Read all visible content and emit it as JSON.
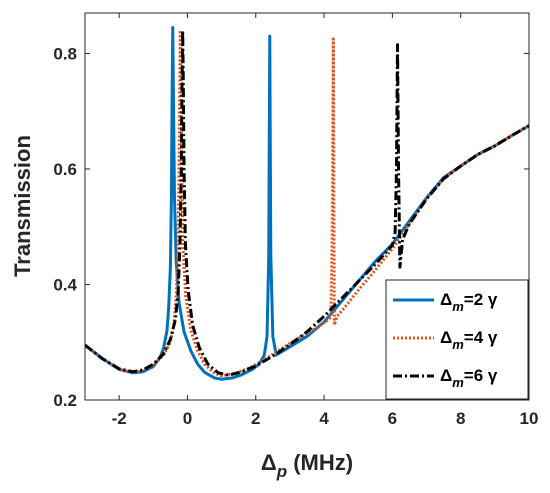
{
  "chart_data": {
    "type": "line",
    "xlabel": "Δp (MHz)",
    "xlabel_parts": {
      "symbol": "Δ",
      "sub": "p",
      "unit": " (MHz)"
    },
    "ylabel": "Transmission",
    "xlim": [
      -3,
      10
    ],
    "ylim": [
      0.2,
      0.87
    ],
    "xticks": [
      "-2",
      "0",
      "2",
      "4",
      "6",
      "8",
      "10"
    ],
    "xtick_values": [
      -2,
      0,
      2,
      4,
      6,
      8,
      10
    ],
    "yticks": [
      "0.2",
      "0.4",
      "0.6",
      "0.8"
    ],
    "ytick_values": [
      0.2,
      0.4,
      0.6,
      0.8
    ],
    "grid": false,
    "legend_position": "bottom-right",
    "series": [
      {
        "name": "Δm=2 γ",
        "legend_parts": {
          "sub": "m",
          "text": "=2 γ"
        },
        "color": "#0072BD",
        "style": "solid",
        "points": [
          [
            -3.0,
            0.295
          ],
          [
            -2.5,
            0.272
          ],
          [
            -2.0,
            0.253
          ],
          [
            -1.6,
            0.247
          ],
          [
            -1.3,
            0.249
          ],
          [
            -1.0,
            0.258
          ],
          [
            -0.8,
            0.274
          ],
          [
            -0.7,
            0.29
          ],
          [
            -0.6,
            0.32
          ],
          [
            -0.55,
            0.36
          ],
          [
            -0.5,
            0.43
          ],
          [
            -0.47,
            0.55
          ],
          [
            -0.45,
            0.72
          ],
          [
            -0.43,
            0.845
          ],
          [
            -0.41,
            0.72
          ],
          [
            -0.38,
            0.55
          ],
          [
            -0.33,
            0.44
          ],
          [
            -0.25,
            0.37
          ],
          [
            -0.1,
            0.318
          ],
          [
            0.1,
            0.285
          ],
          [
            0.3,
            0.262
          ],
          [
            0.5,
            0.248
          ],
          [
            0.8,
            0.238
          ],
          [
            1.0,
            0.236
          ],
          [
            1.3,
            0.238
          ],
          [
            1.6,
            0.244
          ],
          [
            1.9,
            0.253
          ],
          [
            2.1,
            0.262
          ],
          [
            2.25,
            0.278
          ],
          [
            2.33,
            0.31
          ],
          [
            2.38,
            0.45
          ],
          [
            2.41,
            0.83
          ],
          [
            2.44,
            0.45
          ],
          [
            2.5,
            0.31
          ],
          [
            2.6,
            0.278
          ],
          [
            3.0,
            0.292
          ],
          [
            3.5,
            0.31
          ],
          [
            4.0,
            0.335
          ],
          [
            4.5,
            0.37
          ],
          [
            5.0,
            0.405
          ],
          [
            5.5,
            0.44
          ],
          [
            6.0,
            0.47
          ],
          [
            6.5,
            0.51
          ],
          [
            7.0,
            0.55
          ],
          [
            7.5,
            0.585
          ],
          [
            8.0,
            0.605
          ],
          [
            8.5,
            0.625
          ],
          [
            9.0,
            0.64
          ],
          [
            9.5,
            0.658
          ],
          [
            10.0,
            0.675
          ]
        ]
      },
      {
        "name": "Δm=4 γ",
        "legend_parts": {
          "sub": "m",
          "text": "=4 γ"
        },
        "color": "#D95319",
        "style": "dotted",
        "points": [
          [
            -3.0,
            0.295
          ],
          [
            -2.5,
            0.272
          ],
          [
            -2.0,
            0.253
          ],
          [
            -1.6,
            0.248
          ],
          [
            -1.3,
            0.251
          ],
          [
            -1.0,
            0.26
          ],
          [
            -0.7,
            0.278
          ],
          [
            -0.5,
            0.3
          ],
          [
            -0.4,
            0.33
          ],
          [
            -0.33,
            0.38
          ],
          [
            -0.28,
            0.46
          ],
          [
            -0.25,
            0.58
          ],
          [
            -0.23,
            0.72
          ],
          [
            -0.21,
            0.84
          ],
          [
            -0.19,
            0.72
          ],
          [
            -0.17,
            0.58
          ],
          [
            -0.13,
            0.46
          ],
          [
            -0.05,
            0.38
          ],
          [
            0.1,
            0.32
          ],
          [
            0.3,
            0.285
          ],
          [
            0.5,
            0.262
          ],
          [
            0.8,
            0.246
          ],
          [
            1.0,
            0.242
          ],
          [
            1.4,
            0.246
          ],
          [
            1.8,
            0.255
          ],
          [
            2.2,
            0.268
          ],
          [
            2.6,
            0.283
          ],
          [
            3.0,
            0.298
          ],
          [
            3.4,
            0.312
          ],
          [
            3.7,
            0.322
          ],
          [
            3.9,
            0.33
          ],
          [
            4.05,
            0.336
          ],
          [
            4.15,
            0.34
          ],
          [
            4.2,
            0.345
          ],
          [
            4.24,
            0.5
          ],
          [
            4.26,
            0.7
          ],
          [
            4.27,
            0.825
          ],
          [
            4.28,
            0.7
          ],
          [
            4.3,
            0.33
          ],
          [
            4.38,
            0.345
          ],
          [
            4.6,
            0.36
          ],
          [
            5.0,
            0.39
          ],
          [
            5.5,
            0.425
          ],
          [
            6.0,
            0.462
          ],
          [
            6.5,
            0.505
          ],
          [
            7.0,
            0.548
          ],
          [
            7.5,
            0.583
          ],
          [
            8.0,
            0.605
          ],
          [
            8.5,
            0.625
          ],
          [
            9.0,
            0.64
          ],
          [
            9.5,
            0.658
          ],
          [
            10.0,
            0.675
          ]
        ]
      },
      {
        "name": "Δm=6 γ",
        "legend_parts": {
          "sub": "m",
          "text": "=6 γ"
        },
        "color": "#000000",
        "style": "dashdot",
        "points": [
          [
            -3.0,
            0.295
          ],
          [
            -2.5,
            0.272
          ],
          [
            -2.0,
            0.254
          ],
          [
            -1.6,
            0.249
          ],
          [
            -1.3,
            0.252
          ],
          [
            -1.0,
            0.262
          ],
          [
            -0.7,
            0.28
          ],
          [
            -0.5,
            0.305
          ],
          [
            -0.35,
            0.34
          ],
          [
            -0.27,
            0.39
          ],
          [
            -0.22,
            0.47
          ],
          [
            -0.18,
            0.6
          ],
          [
            -0.16,
            0.74
          ],
          [
            -0.14,
            0.84
          ],
          [
            -0.12,
            0.74
          ],
          [
            -0.1,
            0.6
          ],
          [
            -0.06,
            0.47
          ],
          [
            0.02,
            0.39
          ],
          [
            0.15,
            0.33
          ],
          [
            0.35,
            0.29
          ],
          [
            0.6,
            0.262
          ],
          [
            0.9,
            0.247
          ],
          [
            1.2,
            0.243
          ],
          [
            1.6,
            0.249
          ],
          [
            2.0,
            0.259
          ],
          [
            2.5,
            0.276
          ],
          [
            3.0,
            0.296
          ],
          [
            3.5,
            0.318
          ],
          [
            4.0,
            0.345
          ],
          [
            4.5,
            0.375
          ],
          [
            5.0,
            0.405
          ],
          [
            5.5,
            0.435
          ],
          [
            5.8,
            0.455
          ],
          [
            6.0,
            0.468
          ],
          [
            6.08,
            0.49
          ],
          [
            6.12,
            0.6
          ],
          [
            6.15,
            0.815
          ],
          [
            6.18,
            0.6
          ],
          [
            6.22,
            0.43
          ],
          [
            6.3,
            0.478
          ],
          [
            6.5,
            0.505
          ],
          [
            7.0,
            0.548
          ],
          [
            7.5,
            0.583
          ],
          [
            8.0,
            0.605
          ],
          [
            8.5,
            0.625
          ],
          [
            9.0,
            0.64
          ],
          [
            9.5,
            0.658
          ],
          [
            10.0,
            0.675
          ]
        ]
      }
    ]
  }
}
